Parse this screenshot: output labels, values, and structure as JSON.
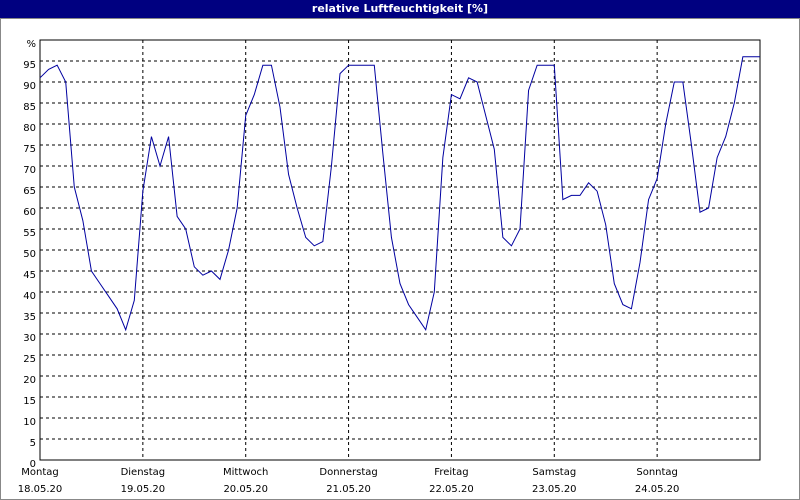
{
  "chart_data": {
    "type": "line",
    "title": "relative Luftfeuchtigkeit [%]",
    "x": [
      0,
      2,
      4,
      6,
      8,
      10,
      12,
      14,
      16,
      18,
      20,
      22,
      24,
      26,
      28,
      30,
      32,
      34,
      36,
      38,
      40,
      42,
      44,
      46,
      48,
      50,
      52,
      54,
      56,
      58,
      60,
      62,
      64,
      66,
      68,
      70,
      72,
      74,
      76,
      78,
      80,
      82,
      84,
      86,
      88,
      90,
      92,
      94,
      96,
      98,
      100,
      102,
      104,
      106,
      108,
      110,
      112,
      114,
      116,
      118,
      120,
      122,
      124,
      126,
      128,
      130,
      132,
      134,
      136,
      138,
      140,
      142,
      144,
      146,
      148,
      150,
      152,
      154,
      156,
      158,
      160,
      162,
      164,
      166,
      168
    ],
    "series": [
      {
        "color": "#0000a0",
        "values": [
          91,
          93,
          94,
          90,
          65,
          57,
          45,
          42,
          39,
          36,
          31,
          38,
          64,
          77,
          70,
          77,
          58,
          55,
          46,
          44,
          45,
          43,
          50,
          60,
          82,
          87,
          94,
          94,
          84,
          68,
          60,
          53,
          51,
          52,
          70,
          92,
          94,
          94,
          94,
          94,
          73,
          53,
          42,
          37,
          34,
          31,
          40,
          72,
          87,
          86,
          91,
          90,
          82,
          74,
          53,
          51,
          55,
          88,
          94,
          94,
          94,
          62,
          63,
          63,
          66,
          64,
          56,
          42,
          37,
          36,
          47,
          62,
          67,
          80,
          90,
          90,
          75,
          59,
          60,
          72,
          77,
          85,
          96,
          96,
          96
        ]
      }
    ],
    "xlim": [
      0,
      168
    ],
    "xticks": [
      {
        "value": 0,
        "label": "Montag",
        "date": "18.05.20"
      },
      {
        "value": 24,
        "label": "Dienstag",
        "date": "19.05.20"
      },
      {
        "value": 48,
        "label": "Mittwoch",
        "date": "20.05.20"
      },
      {
        "value": 72,
        "label": "Donnerstag",
        "date": "21.05.20"
      },
      {
        "value": 96,
        "label": "Freitag",
        "date": "22.05.20"
      },
      {
        "value": 120,
        "label": "Samstag",
        "date": "23.05.20"
      },
      {
        "value": 144,
        "label": "Sonntag",
        "date": "24.05.20"
      }
    ],
    "ylim": [
      0,
      100
    ],
    "yticks": [
      0,
      5,
      10,
      15,
      20,
      25,
      30,
      35,
      40,
      45,
      50,
      55,
      60,
      65,
      70,
      75,
      80,
      85,
      90,
      95,
      {
        "value": 100,
        "label": "%"
      }
    ],
    "grid": true
  }
}
